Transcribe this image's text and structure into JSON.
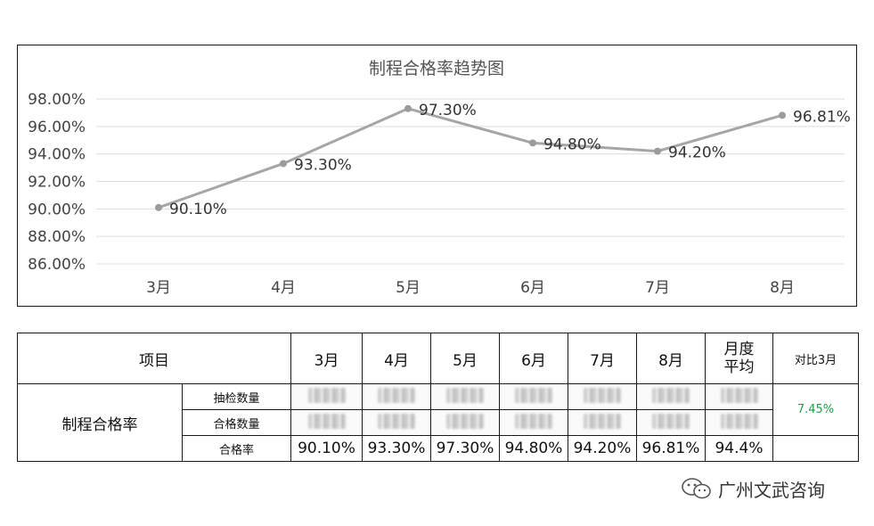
{
  "chart_data": {
    "type": "line",
    "title": "制程合格率趋势图",
    "categories": [
      "3月",
      "4月",
      "5月",
      "6月",
      "7月",
      "8月"
    ],
    "values": [
      90.1,
      93.3,
      97.3,
      94.8,
      94.2,
      96.81
    ],
    "data_labels": [
      "90.10%",
      "93.30%",
      "97.30%",
      "94.80%",
      "94.20%",
      "96.81%"
    ],
    "y_ticks": [
      "98.00%",
      "96.00%",
      "94.00%",
      "92.00%",
      "90.00%",
      "88.00%",
      "86.00%"
    ],
    "ylim": [
      86,
      98
    ],
    "grid": true,
    "line_color": "#a6a6a6"
  },
  "table": {
    "item_header": "项目",
    "months": [
      "3月",
      "4月",
      "5月",
      "6月",
      "7月",
      "8月"
    ],
    "avg_header": "月度平均",
    "compare_header": "对比3月",
    "group_label": "制程合格率",
    "rows": [
      {
        "label": "抽检数量"
      },
      {
        "label": "合格数量"
      },
      {
        "label": "合格率",
        "values": [
          "90.10%",
          "93.30%",
          "97.30%",
          "94.80%",
          "94.20%",
          "96.81%",
          "94.4%"
        ]
      }
    ],
    "compare_value": "7.45%",
    "compare_color": "#1f9d4a"
  },
  "watermark": {
    "text": "广州文武咨询",
    "icon": "wechat-icon"
  }
}
